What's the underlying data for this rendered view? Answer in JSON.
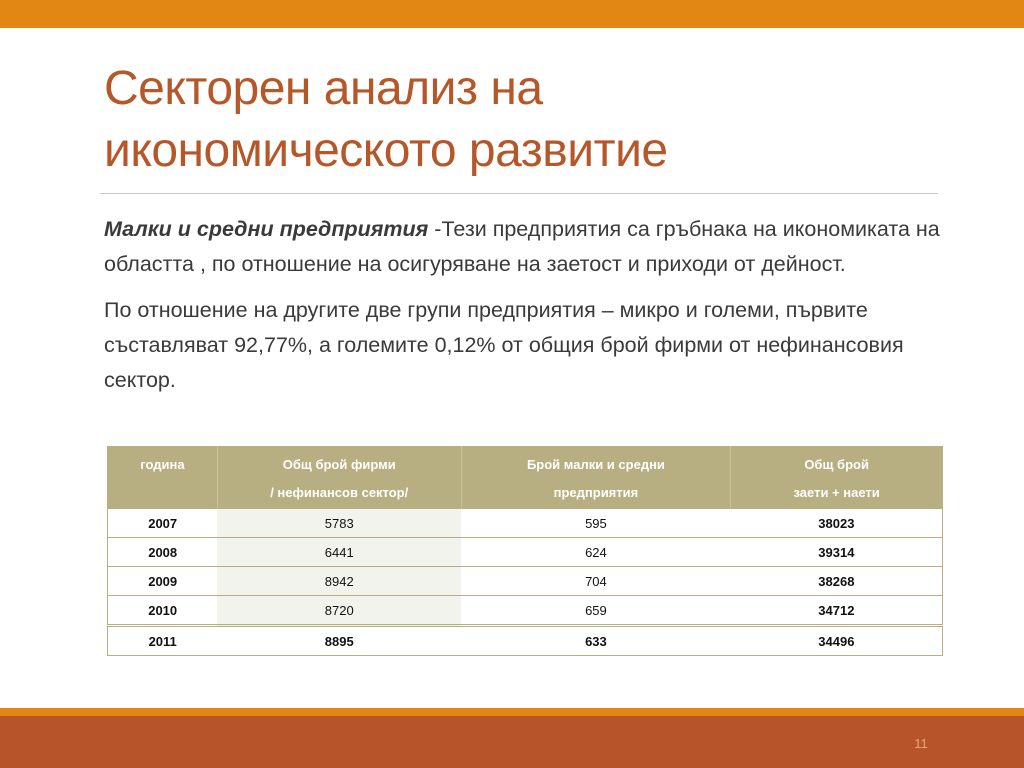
{
  "slide": {
    "title_line1": "Секторен анализ на",
    "title_line2": "икономическото развитие",
    "page_number": "11"
  },
  "body": {
    "p1_lead": "Малки и средни предприятия",
    "p1_rest": " -Тези предприятия са гръбнака на икономиката на областта , по отношение на осигуряване на заетост и приходи от дейност.",
    "p2": "По отношение на другите две групи предприятия – микро и големи, първите съставляват 92,77%, а големите 0,12% от общия брой фирми от нефинансовия сектор."
  },
  "table": {
    "headers": [
      {
        "line1": "година",
        "line2": ""
      },
      {
        "line1": "Общ брой фирми",
        "line2": "/ нефинансов сектор/"
      },
      {
        "line1": "Брой малки и средни",
        "line2": "предприятия"
      },
      {
        "line1": "Общ брой",
        "line2": "заети + наети"
      }
    ],
    "rows": [
      [
        "2007",
        "5783",
        "595",
        "38023"
      ],
      [
        "2008",
        "6441",
        "624",
        "39314"
      ],
      [
        "2009",
        "8942",
        "704",
        "38268"
      ],
      [
        "2010",
        "8720",
        "659",
        "34712"
      ],
      [
        "2011",
        "8895",
        "633",
        "34496"
      ]
    ]
  },
  "colors": {
    "accent_orange": "#e28714",
    "footer_rust": "#b85429",
    "title": "#b65729",
    "table_header": "#b7af82"
  }
}
